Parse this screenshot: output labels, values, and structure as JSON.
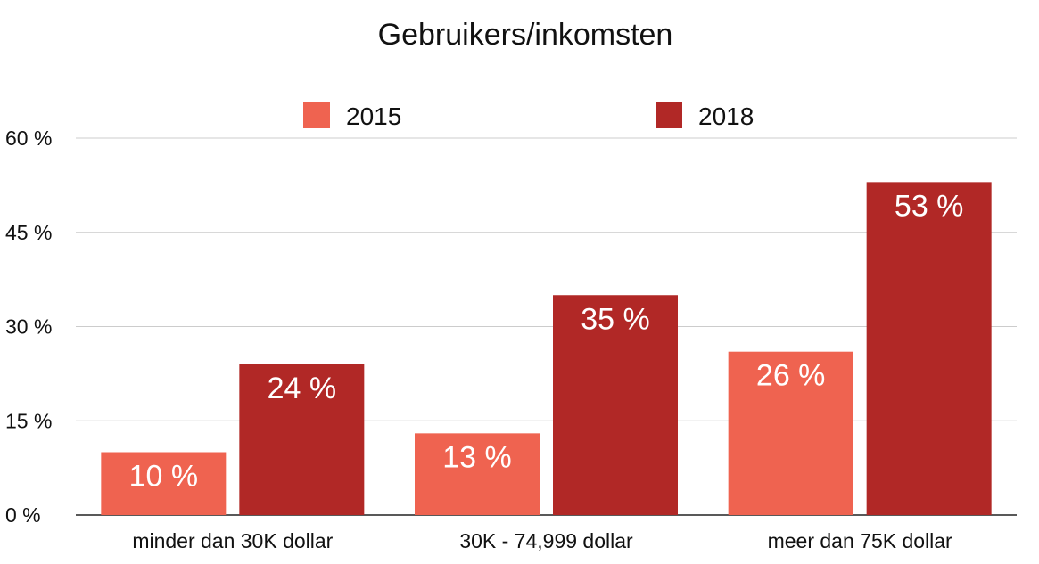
{
  "chart_data": {
    "type": "bar",
    "title": "Gebruikers/inkomsten",
    "categories": [
      "minder dan 30K dollar",
      "30K - 74,999 dollar",
      "meer dan 75K dollar"
    ],
    "series": [
      {
        "name": "2015",
        "values": [
          10,
          13,
          26
        ],
        "labels": [
          "10 %",
          "13 %",
          "26 %"
        ],
        "color": "#ef6350"
      },
      {
        "name": "2018",
        "values": [
          24,
          35,
          53
        ],
        "labels": [
          "24 %",
          "35 %",
          "53 %"
        ],
        "color": "#b12826"
      }
    ],
    "ylim": [
      0,
      60
    ],
    "yticks": [
      0,
      15,
      30,
      45,
      60
    ],
    "ytick_labels": [
      "0 %",
      "15 %",
      "30 %",
      "45 %",
      "60 %"
    ],
    "grid": true,
    "gridline_color": "#cccccc",
    "axis_color": "#222222",
    "legend_position": "top"
  }
}
